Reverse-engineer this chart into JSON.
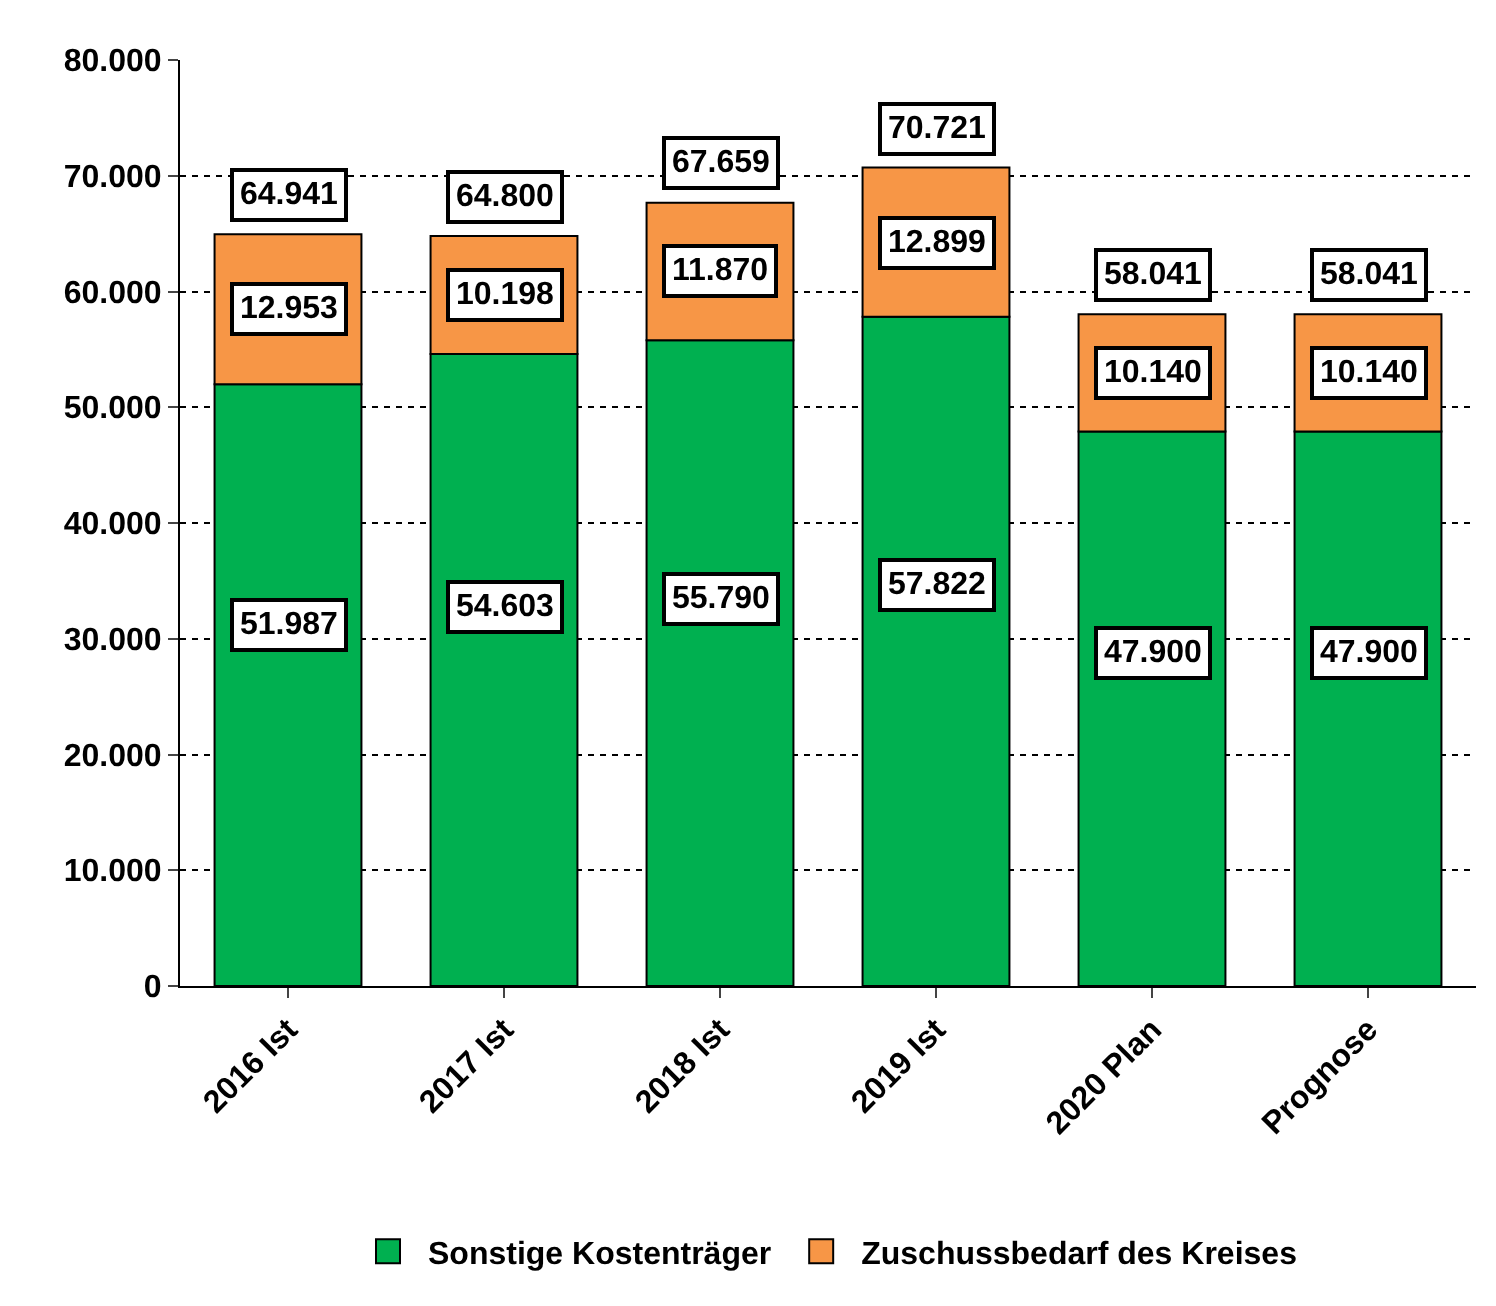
{
  "chart_data": {
    "type": "bar",
    "stacked": true,
    "categories": [
      "2016 Ist",
      "2017 Ist",
      "2018 Ist",
      "2019 Ist",
      "2020 Plan",
      "Prognose"
    ],
    "series": [
      {
        "name": "Sonstige Kostenträger",
        "color": "#00b050",
        "values": [
          51987,
          54603,
          55790,
          57822,
          47900,
          47900
        ],
        "value_labels": [
          "51.987",
          "54.603",
          "55.790",
          "57.822",
          "47.900",
          "47.900"
        ]
      },
      {
        "name": "Zuschussbedarf des Kreises",
        "color": "#f79646",
        "values": [
          12953,
          10198,
          11870,
          12899,
          10140,
          10140
        ],
        "value_labels": [
          "12.953",
          "10.198",
          "11.870",
          "12.899",
          "10.140",
          "10.140"
        ]
      }
    ],
    "totals": [
      "64.941",
      "64.800",
      "67.659",
      "70.721",
      "58.041",
      "58.041"
    ],
    "ylim": [
      0,
      80000
    ],
    "yticks": [
      {
        "value": 0,
        "label": "0"
      },
      {
        "value": 10000,
        "label": "10.000"
      },
      {
        "value": 20000,
        "label": "20.000"
      },
      {
        "value": 30000,
        "label": "30.000"
      },
      {
        "value": 40000,
        "label": "40.000"
      },
      {
        "value": 50000,
        "label": "50.000"
      },
      {
        "value": 60000,
        "label": "60.000"
      },
      {
        "value": 70000,
        "label": "70.000"
      },
      {
        "value": 80000,
        "label": "80.000"
      }
    ],
    "grid": "y",
    "legend": "bottom"
  }
}
